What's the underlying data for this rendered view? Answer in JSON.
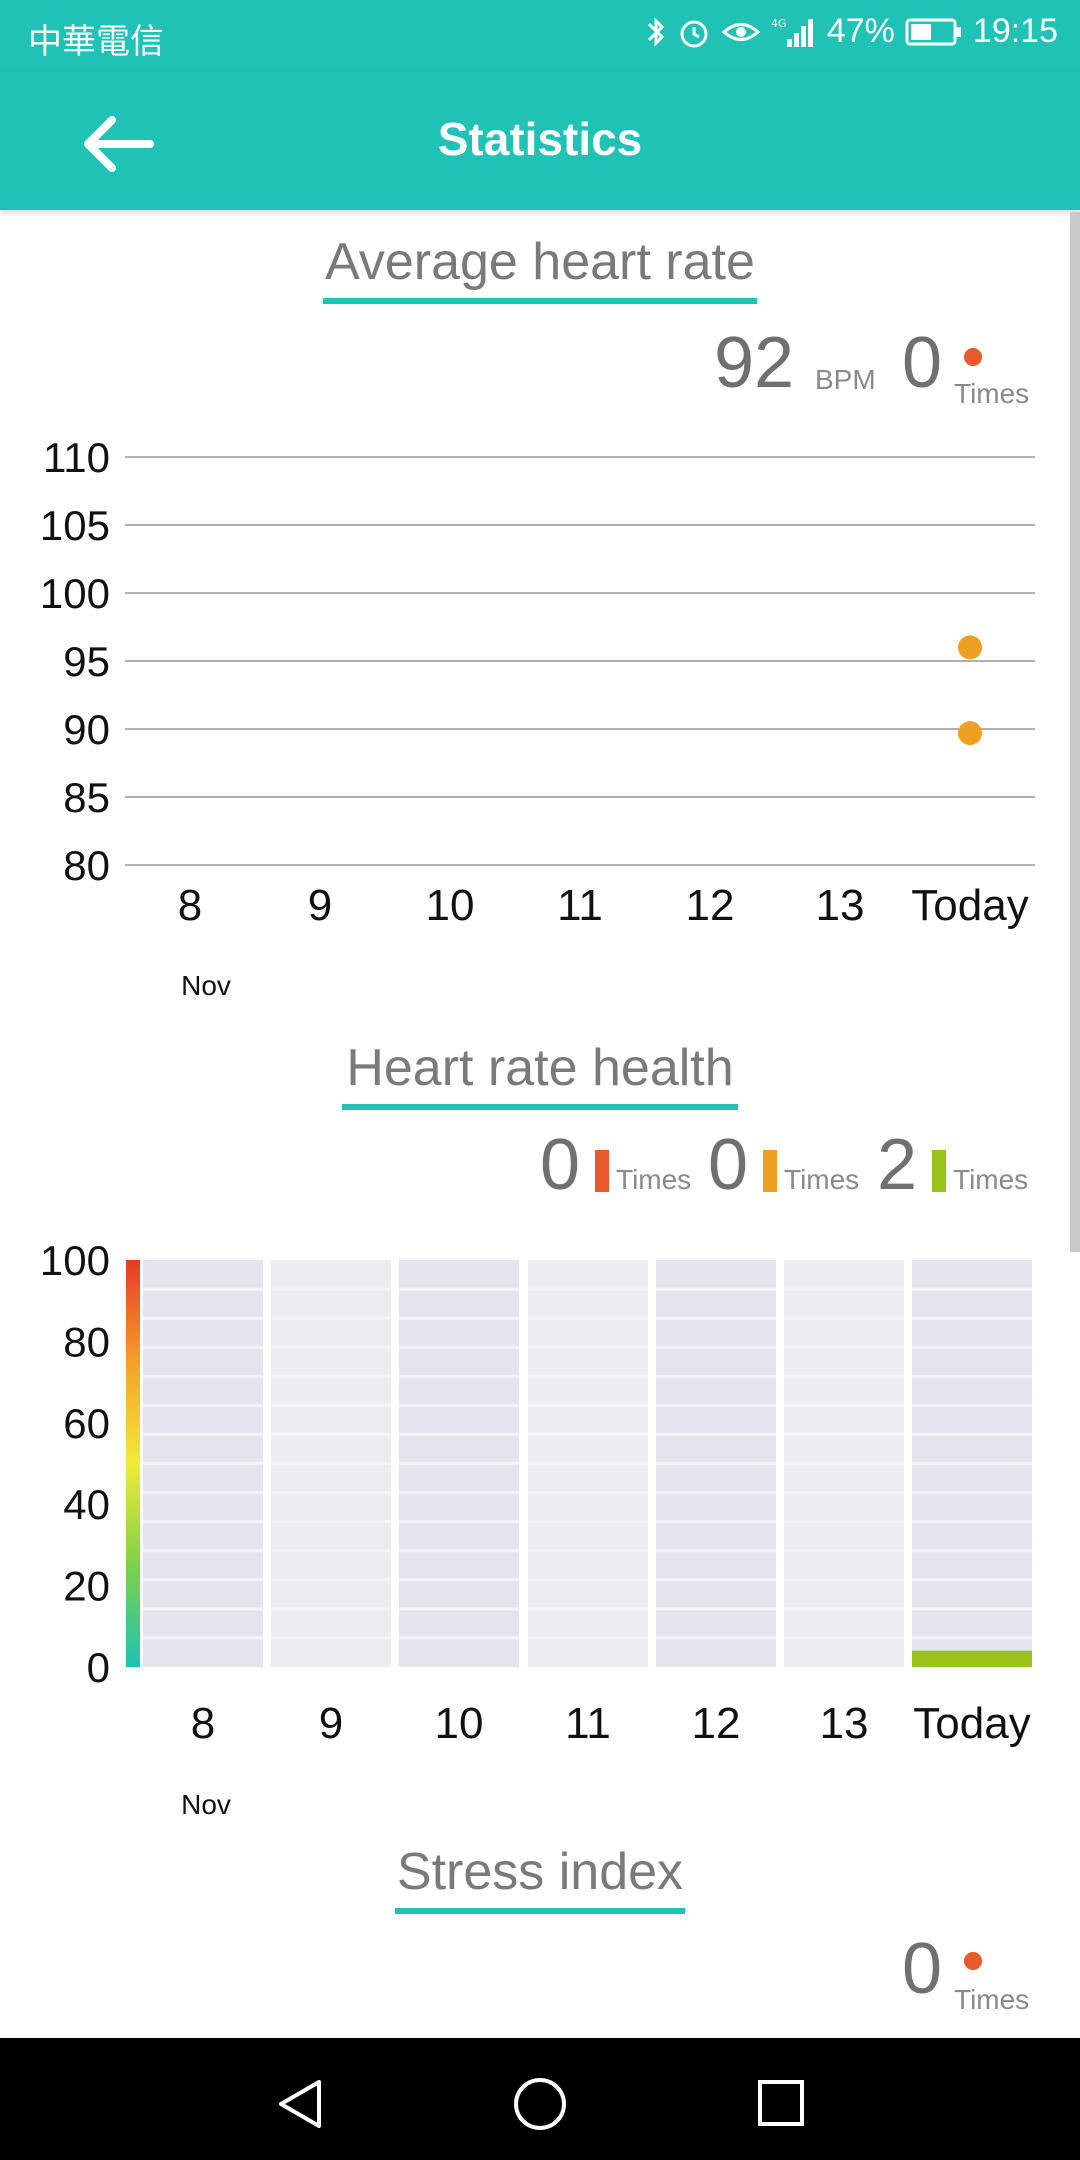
{
  "status_bar": {
    "carrier": "中華電信",
    "icons": [
      "bluetooth-icon",
      "alarm-icon",
      "eye-icon",
      "signal-4g-icon"
    ],
    "battery": "47%",
    "time": "19:15"
  },
  "app_bar": {
    "title": "Statistics"
  },
  "average_heart_rate": {
    "title": "Average heart rate",
    "bpm_value": "92",
    "bpm_unit": "BPM",
    "times_value": "0",
    "times_label": "Times",
    "dot_color": "#e85a2a"
  },
  "heart_rate_health": {
    "title": "Heart rate health",
    "counts": [
      {
        "value": "0",
        "label": "Times",
        "color": "#e85a2a"
      },
      {
        "value": "0",
        "label": "Times",
        "color": "#f0a020"
      },
      {
        "value": "2",
        "label": "Times",
        "color": "#98c41a"
      }
    ]
  },
  "stress_index": {
    "title": "Stress index",
    "times_value": "0",
    "times_label": "Times"
  },
  "chart_data": [
    {
      "type": "scatter",
      "title": "Average heart rate",
      "categories": [
        "8",
        "9",
        "10",
        "11",
        "12",
        "13",
        "Today"
      ],
      "x_sublabel": "Nov",
      "yticks": [
        "110",
        "105",
        "100",
        "95",
        "90",
        "85",
        "80"
      ],
      "ylim": [
        80,
        110
      ],
      "points": [
        {
          "x": "Today",
          "y": 96
        },
        {
          "x": "Today",
          "y": 89.7
        }
      ],
      "point_color": "#f0a020",
      "grid": true
    },
    {
      "type": "bar",
      "title": "Heart rate health",
      "categories": [
        "8",
        "9",
        "10",
        "11",
        "12",
        "13",
        "Today"
      ],
      "x_sublabel": "Nov",
      "yticks": [
        "100",
        "80",
        "60",
        "40",
        "20",
        "0"
      ],
      "ylim": [
        0,
        100
      ],
      "values": [
        0,
        0,
        0,
        0,
        0,
        0,
        4
      ],
      "bar_color": "#98c41a"
    }
  ]
}
